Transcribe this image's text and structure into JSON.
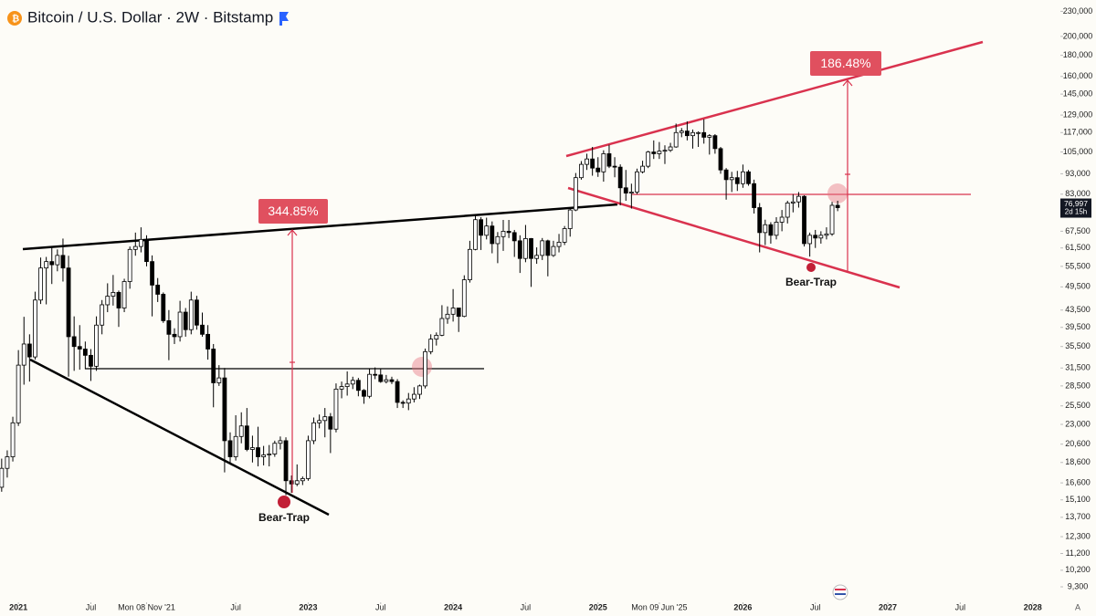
{
  "chart_data": {
    "type": "candlestick",
    "title": "Bitcoin / U.S. Dollar · 2W · Bitstamp",
    "log_scale": true,
    "up_color": "#ffffff",
    "down_color": "#000000",
    "categories": [
      null,
      null,
      null,
      null,
      null,
      null,
      null,
      null,
      null,
      null,
      null,
      null,
      null,
      null,
      null,
      null,
      null,
      null,
      null,
      null,
      null,
      null,
      null,
      null,
      null,
      null,
      null,
      null,
      null,
      null,
      null,
      null,
      null,
      null,
      null,
      null,
      null,
      null,
      null,
      null,
      null,
      null,
      null,
      null,
      null,
      null,
      null,
      null,
      null,
      null,
      null,
      null,
      null,
      null,
      null,
      null,
      null,
      null,
      null,
      null,
      null,
      null,
      null,
      null,
      null,
      null,
      null,
      null,
      null,
      null,
      null,
      null,
      null,
      null,
      null,
      null,
      null,
      null,
      null,
      null,
      null,
      null,
      null,
      null,
      null,
      null,
      null,
      null,
      null,
      null,
      null,
      null,
      null,
      null,
      null,
      null,
      null,
      null,
      null,
      null,
      null,
      null,
      null,
      null,
      null,
      null,
      null,
      null,
      null,
      null,
      null,
      null,
      null,
      null,
      null,
      null,
      null,
      null,
      null,
      null,
      null,
      null,
      null,
      null,
      null,
      null,
      null,
      null,
      null,
      null,
      null,
      null,
      null,
      null,
      null,
      null,
      null,
      null,
      null,
      null,
      null,
      null,
      null,
      null,
      null,
      null,
      null,
      null,
      null,
      null,
      null
    ],
    "open": [
      16200,
      18000,
      19200,
      23200,
      32000,
      36000,
      33500,
      46000,
      55000,
      57000,
      56000,
      59000,
      55000,
      37500,
      35500,
      35000,
      33800,
      31800,
      40000,
      44800,
      47000,
      48000,
      44000,
      51000,
      61000,
      62000,
      64500,
      57000,
      50000,
      47500,
      41000,
      38000,
      37500,
      43000,
      39000,
      46000,
      40000,
      38000,
      35000,
      29000,
      29800,
      21000,
      19200,
      21500,
      22800,
      20000,
      20200,
      19200,
      19400,
      19500,
      20700,
      21000,
      16800,
      16500,
      16800,
      17000,
      21000,
      23200,
      23500,
      24000,
      22400,
      28000,
      28400,
      28800,
      29400,
      27800,
      26900,
      30400,
      30300,
      29200,
      29500,
      29200,
      26000,
      25900,
      26500,
      27200,
      28500,
      34500,
      37000,
      37800,
      41500,
      42500,
      44000,
      42000,
      51500,
      61000,
      72000,
      66000,
      69500,
      63000,
      65500,
      67500,
      67000,
      64000,
      58000,
      64800,
      58000,
      59000,
      64000,
      59000,
      62000,
      63500,
      68500,
      76000,
      91000,
      98000,
      101000,
      96000,
      94000,
      104000,
      97000,
      96500,
      86000,
      83500,
      84000,
      94000,
      97000,
      105000,
      104000,
      105500,
      106000,
      108000,
      117000,
      118000,
      115000,
      117000,
      117000,
      114000,
      115000,
      107000,
      95000,
      90000,
      91000,
      88000,
      94000,
      88000,
      77000,
      67000,
      70000,
      66000,
      71000,
      73000,
      79000,
      79500,
      82000,
      63000,
      66000,
      65000,
      66000,
      66500,
      78000
    ],
    "high": [
      19000,
      19900,
      24000,
      34800,
      41900,
      38000,
      48200,
      58300,
      58500,
      61700,
      61000,
      64800,
      58900,
      42000,
      40000,
      36500,
      35000,
      42000,
      46000,
      50500,
      52900,
      48500,
      51800,
      62000,
      67000,
      69000,
      66000,
      59000,
      52000,
      48000,
      43500,
      39300,
      45800,
      44000,
      48200,
      47100,
      42900,
      40000,
      36000,
      32000,
      31500,
      22000,
      24200,
      24600,
      25200,
      21600,
      22700,
      20400,
      20500,
      21000,
      21500,
      21400,
      17300,
      18400,
      17200,
      21600,
      23900,
      24300,
      25200,
      24500,
      28900,
      29200,
      30900,
      30000,
      29800,
      28000,
      31400,
      31600,
      31300,
      30300,
      30000,
      29600,
      26300,
      27400,
      28300,
      28700,
      35100,
      38000,
      38400,
      44700,
      44400,
      48900,
      44000,
      52800,
      64000,
      73700,
      73000,
      72800,
      71300,
      67200,
      71900,
      71900,
      68000,
      66000,
      69900,
      65000,
      61700,
      65000,
      64400,
      64000,
      66500,
      69500,
      77000,
      93400,
      99800,
      104000,
      108000,
      102000,
      106000,
      109300,
      102000,
      98000,
      95000,
      88000,
      95700,
      100000,
      105700,
      112000,
      111000,
      109000,
      110500,
      123000,
      120000,
      124500,
      119000,
      117800,
      126000,
      116000,
      116000,
      108000,
      96000,
      94000,
      94500,
      97900,
      95000,
      90000,
      79000,
      72000,
      71000,
      73000,
      76000,
      80000,
      83000,
      84000,
      82500,
      67000,
      68000,
      67500,
      69000,
      79500,
      80000
    ],
    "low": [
      15800,
      17100,
      18700,
      22800,
      28700,
      29200,
      33000,
      45000,
      44900,
      50300,
      54000,
      51000,
      30000,
      31000,
      31200,
      31300,
      29300,
      31000,
      38000,
      43000,
      44600,
      39600,
      43000,
      49000,
      58900,
      60000,
      55500,
      42000,
      45500,
      40500,
      32900,
      36000,
      36500,
      37500,
      38000,
      39000,
      37500,
      33000,
      25300,
      28500,
      17600,
      18400,
      18800,
      20700,
      19800,
      18600,
      18200,
      18300,
      18200,
      19200,
      20000,
      15500,
      15700,
      16300,
      16400,
      16800,
      20600,
      22500,
      21400,
      19600,
      22000,
      26600,
      27000,
      28000,
      26900,
      25800,
      26600,
      29600,
      29000,
      28900,
      28800,
      25200,
      25200,
      24900,
      26000,
      26500,
      28100,
      34000,
      35700,
      37600,
      40300,
      40800,
      38500,
      41800,
      50700,
      60700,
      60800,
      64500,
      59700,
      56500,
      60500,
      65000,
      58500,
      53500,
      56800,
      49500,
      56300,
      57500,
      52500,
      58500,
      60000,
      62500,
      65500,
      75500,
      90000,
      95000,
      92000,
      91400,
      89000,
      96000,
      91200,
      78000,
      80000,
      76600,
      83000,
      93200,
      96000,
      101000,
      101000,
      98200,
      105000,
      107500,
      114000,
      112000,
      107000,
      108000,
      110000,
      103500,
      104000,
      93000,
      80500,
      84000,
      84500,
      86000,
      87000,
      74500,
      60000,
      62500,
      63000,
      64500,
      67500,
      70500,
      75000,
      77000,
      62000,
      58600,
      61500,
      63000,
      64500,
      65800,
      75500
    ],
    "close": [
      18000,
      19200,
      23200,
      32000,
      36000,
      33500,
      46000,
      55000,
      57000,
      56000,
      59000,
      55000,
      37500,
      35500,
      35000,
      33800,
      31800,
      40000,
      44800,
      47000,
      48000,
      44000,
      51000,
      61000,
      62000,
      64500,
      57000,
      50000,
      47500,
      41000,
      38000,
      37500,
      43000,
      39000,
      46000,
      40000,
      38000,
      35000,
      29000,
      29800,
      21000,
      19200,
      21500,
      22800,
      20000,
      20200,
      19200,
      19400,
      19500,
      20700,
      21000,
      16800,
      16500,
      16800,
      17000,
      21000,
      23200,
      23500,
      24000,
      22400,
      28000,
      28400,
      28800,
      29400,
      27800,
      26900,
      30400,
      30300,
      29200,
      29500,
      29200,
      26000,
      25900,
      26500,
      27200,
      28500,
      34500,
      37000,
      37800,
      41500,
      42500,
      44000,
      42000,
      51500,
      61000,
      72000,
      66000,
      69500,
      63000,
      65500,
      67500,
      67000,
      64000,
      58000,
      64800,
      58000,
      59000,
      64000,
      59000,
      62000,
      63500,
      68500,
      76000,
      91000,
      98000,
      101000,
      96000,
      94000,
      104000,
      97000,
      96500,
      86000,
      83500,
      84000,
      94000,
      97000,
      105000,
      104000,
      105500,
      106000,
      108000,
      117000,
      118000,
      115000,
      117000,
      117000,
      114000,
      115000,
      107000,
      95000,
      90000,
      91000,
      88000,
      94000,
      88000,
      77000,
      67000,
      70000,
      66000,
      71000,
      73000,
      79000,
      79500,
      82000,
      63000,
      66000,
      65000,
      66000,
      66500,
      78000,
      76997
    ],
    "xlim": [
      -0.3,
      189.8
    ],
    "xticks": [
      {
        "value": 3,
        "label": "2021"
      },
      {
        "value": 16,
        "label": "Jul"
      },
      {
        "value": 26,
        "label": "Mon 08 Nov '21"
      },
      {
        "value": 42,
        "label": "Jul"
      },
      {
        "value": 55,
        "label": "2023"
      },
      {
        "value": 68,
        "label": "Jul"
      },
      {
        "value": 81,
        "label": "2024"
      },
      {
        "value": 94,
        "label": "Jul"
      },
      {
        "value": 107,
        "label": "2025"
      },
      {
        "value": 118,
        "label": "Mon 09 Jun '25"
      },
      {
        "value": 133,
        "label": "2026"
      },
      {
        "value": 146,
        "label": "Jul"
      },
      {
        "value": 159,
        "label": "2027"
      },
      {
        "value": 172,
        "label": "Jul"
      },
      {
        "value": 185,
        "label": "2028"
      }
    ],
    "ylim": [
      8750,
      245000
    ],
    "yticks": [
      {
        "value": 230000,
        "label": "230,000"
      },
      {
        "value": 200000,
        "label": "200,000"
      },
      {
        "value": 180000,
        "label": "180,000"
      },
      {
        "value": 160000,
        "label": "160,000"
      },
      {
        "value": 145000,
        "label": "145,000"
      },
      {
        "value": 129000,
        "label": "129,000"
      },
      {
        "value": 117000,
        "label": "117,000"
      },
      {
        "value": 105000,
        "label": "105,000"
      },
      {
        "value": 93000,
        "label": "93,000"
      },
      {
        "value": 83000,
        "label": "83,000"
      },
      {
        "value": 67500,
        "label": "67,500"
      },
      {
        "value": 61500,
        "label": "61,500"
      },
      {
        "value": 55500,
        "label": "55,500"
      },
      {
        "value": 49500,
        "label": "49,500"
      },
      {
        "value": 43500,
        "label": "43,500"
      },
      {
        "value": 39500,
        "label": "39,500"
      },
      {
        "value": 35500,
        "label": "35,500"
      },
      {
        "value": 31500,
        "label": "31,500"
      },
      {
        "value": 28500,
        "label": "28,500"
      },
      {
        "value": 25500,
        "label": "25,500"
      },
      {
        "value": 23000,
        "label": "23,000"
      },
      {
        "value": 20600,
        "label": "20,600"
      },
      {
        "value": 18600,
        "label": "18,600"
      },
      {
        "value": 16600,
        "label": "16,600"
      },
      {
        "value": 15100,
        "label": "15,100"
      },
      {
        "value": 13700,
        "label": "13,700"
      },
      {
        "value": 12300,
        "label": "12,300"
      },
      {
        "value": 11200,
        "label": "11,200"
      },
      {
        "value": 10200,
        "label": "10,200"
      },
      {
        "value": 9300,
        "label": "9,300"
      }
    ],
    "last_price": {
      "value": 76997,
      "label": "76,997"
    },
    "countdown": "2d 15h",
    "annotations": {
      "gain_1": "344.85%",
      "gain_2": "186.48%",
      "bear_trap_1": "Bear-Trap",
      "bear_trap_2": "Bear-Trap"
    },
    "auto_scale": "A"
  }
}
